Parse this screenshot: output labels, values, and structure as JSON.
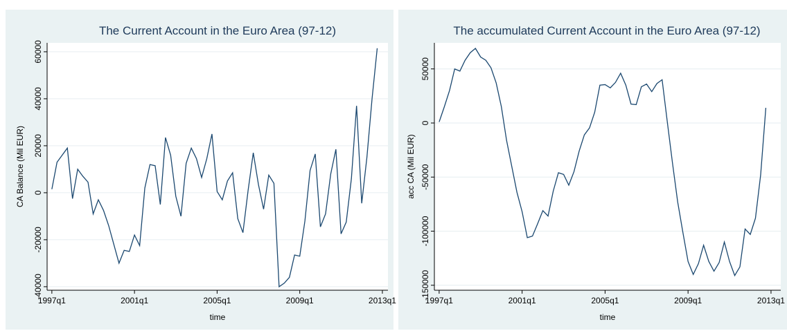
{
  "chart_data": [
    {
      "type": "line",
      "title": "The Current Account in the Euro Area (97-12)",
      "x_label": "time",
      "y_label": "CA Balance (Mil EUR)",
      "x": [
        1997,
        1997.25,
        1997.5,
        1997.75,
        1998,
        1998.25,
        1998.5,
        1998.75,
        1999,
        1999.25,
        1999.5,
        1999.75,
        2000,
        2000.25,
        2000.5,
        2000.75,
        2001,
        2001.25,
        2001.5,
        2001.75,
        2002,
        2002.25,
        2002.5,
        2002.75,
        2003,
        2003.25,
        2003.5,
        2003.75,
        2004,
        2004.25,
        2004.5,
        2004.75,
        2005,
        2005.25,
        2005.5,
        2005.75,
        2006,
        2006.25,
        2006.5,
        2006.75,
        2007,
        2007.25,
        2007.5,
        2007.75,
        2008,
        2008.25,
        2008.5,
        2008.75,
        2009,
        2009.25,
        2009.5,
        2009.75,
        2010,
        2010.25,
        2010.5,
        2010.75,
        2011,
        2011.25,
        2011.5,
        2011.75,
        2012,
        2012.25,
        2012.5,
        2012.75
      ],
      "series": [
        {
          "color": "#1a476f",
          "values": [
            1500,
            13000,
            16000,
            19000,
            -2500,
            10000,
            7000,
            4500,
            -9000,
            -3000,
            -7500,
            -14000,
            -22000,
            -30000,
            -24500,
            -25000,
            -18000,
            -22500,
            2000,
            12000,
            11500,
            -5000,
            23500,
            16000,
            -1500,
            -10000,
            12500,
            19000,
            14500,
            6500,
            14500,
            25000,
            500,
            -3000,
            5000,
            8500,
            -11000,
            -17000,
            1000,
            17000,
            3500,
            -7000,
            7500,
            4000,
            -40000,
            -38500,
            -36000,
            -26500,
            -27000,
            -12000,
            9500,
            16500,
            -14500,
            -9000,
            8000,
            18500,
            -17500,
            -12500,
            6000,
            37000,
            -4500,
            15000,
            40000,
            61500
          ]
        }
      ],
      "xlim": [
        1996.77,
        2013.27
      ],
      "xticks": [
        {
          "value": 1997,
          "label": "1997q1"
        },
        {
          "value": 2001,
          "label": "2001q1"
        },
        {
          "value": 2005,
          "label": "2005q1"
        },
        {
          "value": 2009,
          "label": "2009q1"
        },
        {
          "value": 2013,
          "label": "2013q1"
        }
      ],
      "ylim": [
        -41500,
        63800
      ],
      "yticks": [
        -40000,
        -20000,
        0,
        20000,
        40000,
        60000
      ],
      "grid": true
    },
    {
      "type": "line",
      "title": "The accumulated Current Account in the Euro Area (97-12)",
      "x_label": "time",
      "y_label": "acc CA (Mil EUR)",
      "x": [
        1997,
        1997.25,
        1997.5,
        1997.75,
        1998,
        1998.25,
        1998.5,
        1998.75,
        1999,
        1999.25,
        1999.5,
        1999.75,
        2000,
        2000.25,
        2000.5,
        2000.75,
        2001,
        2001.25,
        2001.5,
        2001.75,
        2002,
        2002.25,
        2002.5,
        2002.75,
        2003,
        2003.25,
        2003.5,
        2003.75,
        2004,
        2004.25,
        2004.5,
        2004.75,
        2005,
        2005.25,
        2005.5,
        2005.75,
        2006,
        2006.25,
        2006.5,
        2006.75,
        2007,
        2007.25,
        2007.5,
        2007.75,
        2008,
        2008.25,
        2008.5,
        2008.75,
        2009,
        2009.25,
        2009.5,
        2009.75,
        2010,
        2010.25,
        2010.5,
        2010.75,
        2011,
        2011.25,
        2011.5,
        2011.75,
        2012,
        2012.25,
        2012.5,
        2012.75
      ],
      "series": [
        {
          "color": "#1a476f",
          "values": [
            1000,
            15000,
            30000,
            50000,
            48000,
            58000,
            65000,
            69000,
            61000,
            58000,
            51000,
            37000,
            15000,
            -16000,
            -40000,
            -64000,
            -82000,
            -106000,
            -104500,
            -93000,
            -81000,
            -86000,
            -63000,
            -46000,
            -47500,
            -57500,
            -45000,
            -26000,
            -11000,
            -4500,
            10000,
            35000,
            35500,
            32500,
            37500,
            46000,
            35000,
            17500,
            17000,
            33500,
            36000,
            29000,
            36500,
            40000,
            1000,
            -37000,
            -73000,
            -101000,
            -128000,
            -140000,
            -130000,
            -113000,
            -128000,
            -137000,
            -129000,
            -110000,
            -128000,
            -141000,
            -133000,
            -98000,
            -103000,
            -88000,
            -48000,
            14000
          ]
        }
      ],
      "xlim": [
        1996.77,
        2013.47
      ],
      "xticks": [
        {
          "value": 1997,
          "label": "1997q1"
        },
        {
          "value": 2001,
          "label": "2001q1"
        },
        {
          "value": 2005,
          "label": "2005q1"
        },
        {
          "value": 2009,
          "label": "2009q1"
        },
        {
          "value": 2013,
          "label": "2013q1"
        }
      ],
      "ylim": [
        -154600,
        74100
      ],
      "yticks": [
        -150000,
        -100000,
        -50000,
        0,
        50000
      ],
      "grid": true
    }
  ]
}
